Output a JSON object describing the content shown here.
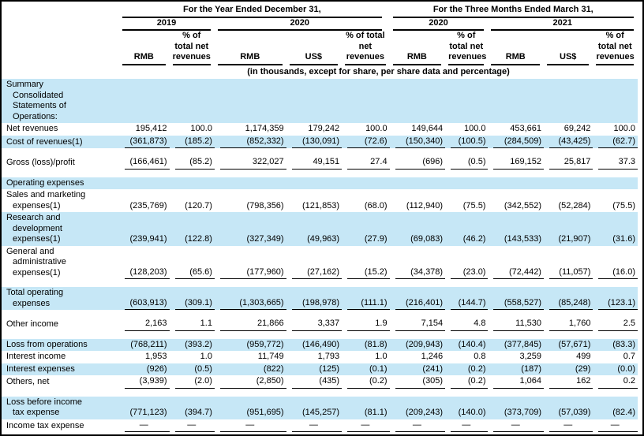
{
  "colors": {
    "row_highlight": "#c6e7f6"
  },
  "table": {
    "unit_note": "(in thousands, except for share, per share data and percentage)",
    "periods": [
      {
        "label": "For the Year Ended December 31,",
        "years": [
          {
            "label": "2019",
            "cols": [
              "RMB",
              "% of total net revenues"
            ]
          },
          {
            "label": "2020",
            "cols": [
              "RMB",
              "US$",
              "% of total net revenues"
            ]
          }
        ]
      },
      {
        "label": "For the Three Months Ended March 31,",
        "years": [
          {
            "label": "2020",
            "cols": [
              "RMB",
              "% of total net revenues"
            ]
          },
          {
            "label": "2021",
            "cols": [
              "RMB",
              "US$",
              "% of total net revenues"
            ]
          }
        ]
      }
    ],
    "rows": [
      {
        "label": "Summary\nConsolidated\nStatements of\nOperations:",
        "bold": true,
        "shaded": true,
        "values": [
          "",
          "",
          "",
          "",
          "",
          "",
          "",
          "",
          "",
          ""
        ]
      },
      {
        "label": "Net revenues",
        "values": [
          "195,412",
          "100.0",
          "1,174,359",
          "179,242",
          "100.0",
          "149,644",
          "100.0",
          "453,661",
          "69,242",
          "100.0"
        ]
      },
      {
        "label": "Cost of revenues(1)",
        "shaded": true,
        "underline": true,
        "values": [
          "(361,873)",
          "(185.2)",
          "(852,332)",
          "(130,091)",
          "(72.6)",
          "(150,340)",
          "(100.5)",
          "(284,509)",
          "(43,425)",
          "(62.7)"
        ]
      },
      {
        "spacer": true
      },
      {
        "label": "Gross (loss)/profit",
        "bold": true,
        "underline": true,
        "values": [
          "(166,461)",
          "(85.2)",
          "322,027",
          "49,151",
          "27.4",
          "(696)",
          "(0.5)",
          "169,152",
          "25,817",
          "37.3"
        ]
      },
      {
        "spacer": true
      },
      {
        "label": "Operating expenses",
        "shaded": true,
        "values": [
          "",
          "",
          "",
          "",
          "",
          "",
          "",
          "",
          "",
          ""
        ]
      },
      {
        "label": "Sales and marketing\nexpenses(1)",
        "values": [
          "(235,769)",
          "(120.7)",
          "(798,356)",
          "(121,853)",
          "(68.0)",
          "(112,940)",
          "(75.5)",
          "(342,552)",
          "(52,284)",
          "(75.5)"
        ]
      },
      {
        "label": "Research and\ndevelopment\nexpenses(1)",
        "shaded": true,
        "values": [
          "(239,941)",
          "(122.8)",
          "(327,349)",
          "(49,963)",
          "(27.9)",
          "(69,083)",
          "(46.2)",
          "(143,533)",
          "(21,907)",
          "(31.6)"
        ]
      },
      {
        "label": "General and\nadministrative\nexpenses(1)",
        "underline": true,
        "values": [
          "(128,203)",
          "(65.6)",
          "(177,960)",
          "(27,162)",
          "(15.2)",
          "(34,378)",
          "(23.0)",
          "(72,442)",
          "(11,057)",
          "(16.0)"
        ]
      },
      {
        "spacer": true
      },
      {
        "label": "Total operating\nexpenses",
        "bold": true,
        "shaded": true,
        "underline": true,
        "values": [
          "(603,913)",
          "(309.1)",
          "(1,303,665)",
          "(198,978)",
          "(111.1)",
          "(216,401)",
          "(144.7)",
          "(558,527)",
          "(85,248)",
          "(123.1)"
        ]
      },
      {
        "spacer": true
      },
      {
        "label": "Other income",
        "underline": true,
        "values": [
          "2,163",
          "1.1",
          "21,866",
          "3,337",
          "1.9",
          "7,154",
          "4.8",
          "11,530",
          "1,760",
          "2.5"
        ]
      },
      {
        "spacer": true
      },
      {
        "label": "Loss from operations",
        "bold": true,
        "shaded": true,
        "values": [
          "(768,211)",
          "(393.2)",
          "(959,772)",
          "(146,490)",
          "(81.8)",
          "(209,943)",
          "(140.4)",
          "(377,845)",
          "(57,671)",
          "(83.3)"
        ]
      },
      {
        "label": "Interest income",
        "values": [
          "1,953",
          "1.0",
          "11,749",
          "1,793",
          "1.0",
          "1,246",
          "0.8",
          "3,259",
          "499",
          "0.7"
        ]
      },
      {
        "label": "Interest expenses",
        "shaded": true,
        "values": [
          "(926)",
          "(0.5)",
          "(822)",
          "(125)",
          "(0.1)",
          "(241)",
          "(0.2)",
          "(187)",
          "(29)",
          "(0.0)"
        ]
      },
      {
        "label": "Others, net",
        "underline": true,
        "values": [
          "(3,939)",
          "(2.0)",
          "(2,850)",
          "(435)",
          "(0.2)",
          "(305)",
          "(0.2)",
          "1,064",
          "162",
          "0.2"
        ]
      },
      {
        "spacer": true
      },
      {
        "label": "Loss before income\ntax expense",
        "bold": true,
        "shaded": true,
        "values": [
          "(771,123)",
          "(394.7)",
          "(951,695)",
          "(145,257)",
          "(81.1)",
          "(209,243)",
          "(140.0)",
          "(373,709)",
          "(57,039)",
          "(82.4)"
        ]
      },
      {
        "label": "Income tax expense",
        "underline": true,
        "values": [
          "—",
          "—",
          "—",
          "—",
          "—",
          "—",
          "—",
          "—",
          "—",
          "—"
        ]
      }
    ]
  }
}
